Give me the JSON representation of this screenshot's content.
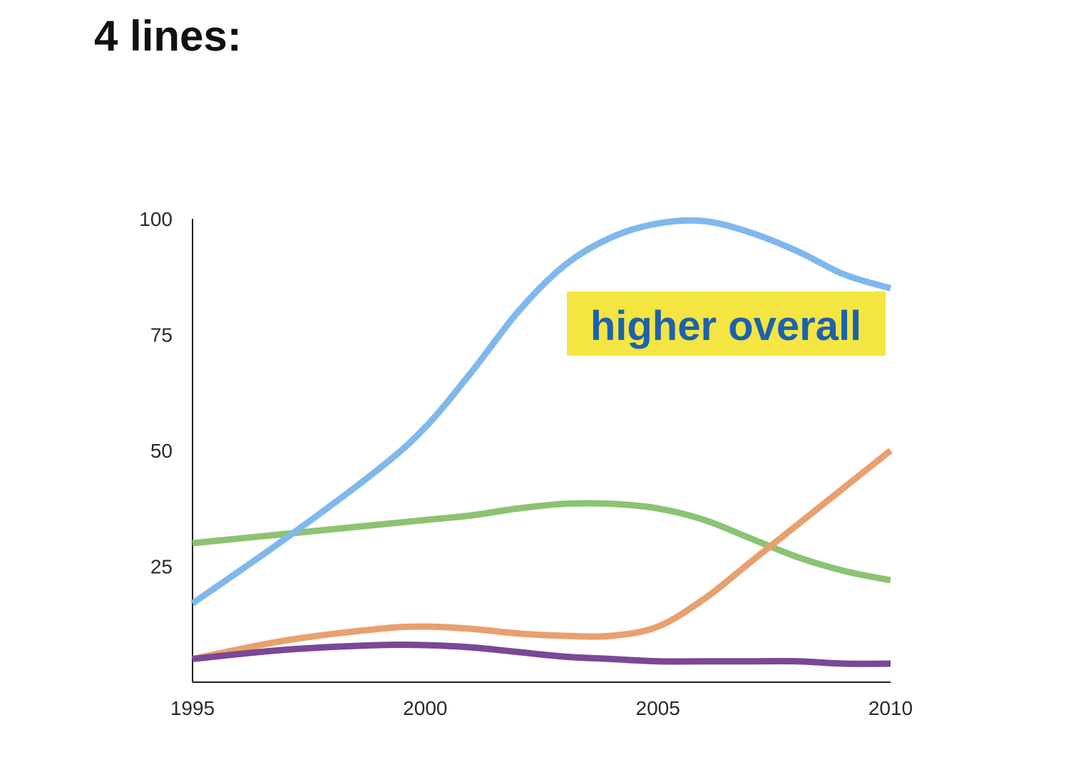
{
  "title": "4 lines:",
  "chart_data": {
    "type": "line",
    "x_ticks": [
      1995,
      2000,
      2005,
      2010
    ],
    "y_ticks": [
      25,
      50,
      75,
      100
    ],
    "xlim": [
      1995,
      2010
    ],
    "ylim": [
      0,
      100
    ],
    "grid": false,
    "series": [
      {
        "color": "#7fb8ec",
        "x": [
          1995,
          1997,
          1999,
          2000,
          2001,
          2002,
          2003,
          2004,
          2005,
          2006,
          2007,
          2008,
          2009,
          2010
        ],
        "values": [
          17,
          31,
          46,
          55,
          67,
          80,
          90,
          96,
          99,
          99.5,
          97,
          93,
          88,
          85
        ]
      },
      {
        "color": "#8cc373",
        "x": [
          1995,
          1997,
          1999,
          2000,
          2001,
          2002,
          2003,
          2004,
          2005,
          2006,
          2007,
          2008,
          2009,
          2010
        ],
        "values": [
          30,
          32,
          34,
          35,
          36,
          37.5,
          38.5,
          38.5,
          37.5,
          35,
          31,
          27,
          24,
          22
        ]
      },
      {
        "color": "#e8a06e",
        "x": [
          1995,
          1997,
          1999,
          2000,
          2001,
          2002,
          2003,
          2004,
          2005,
          2006,
          2007,
          2008,
          2009,
          2010
        ],
        "values": [
          5,
          9,
          11.5,
          12,
          11.5,
          10.5,
          10,
          10,
          12,
          18,
          26,
          34,
          42,
          50
        ]
      },
      {
        "color": "#7b4796",
        "x": [
          1995,
          1997,
          1999,
          2000,
          2001,
          2002,
          2003,
          2004,
          2005,
          2006,
          2007,
          2008,
          2009,
          2010
        ],
        "values": [
          5,
          7,
          8,
          8,
          7.5,
          6.5,
          5.5,
          5,
          4.5,
          4.5,
          4.5,
          4.5,
          4,
          4
        ]
      }
    ],
    "annotation": {
      "text": "higher overall",
      "text_color": "#1d62ad",
      "background": "#f4e542",
      "points_to": "blue line"
    }
  }
}
